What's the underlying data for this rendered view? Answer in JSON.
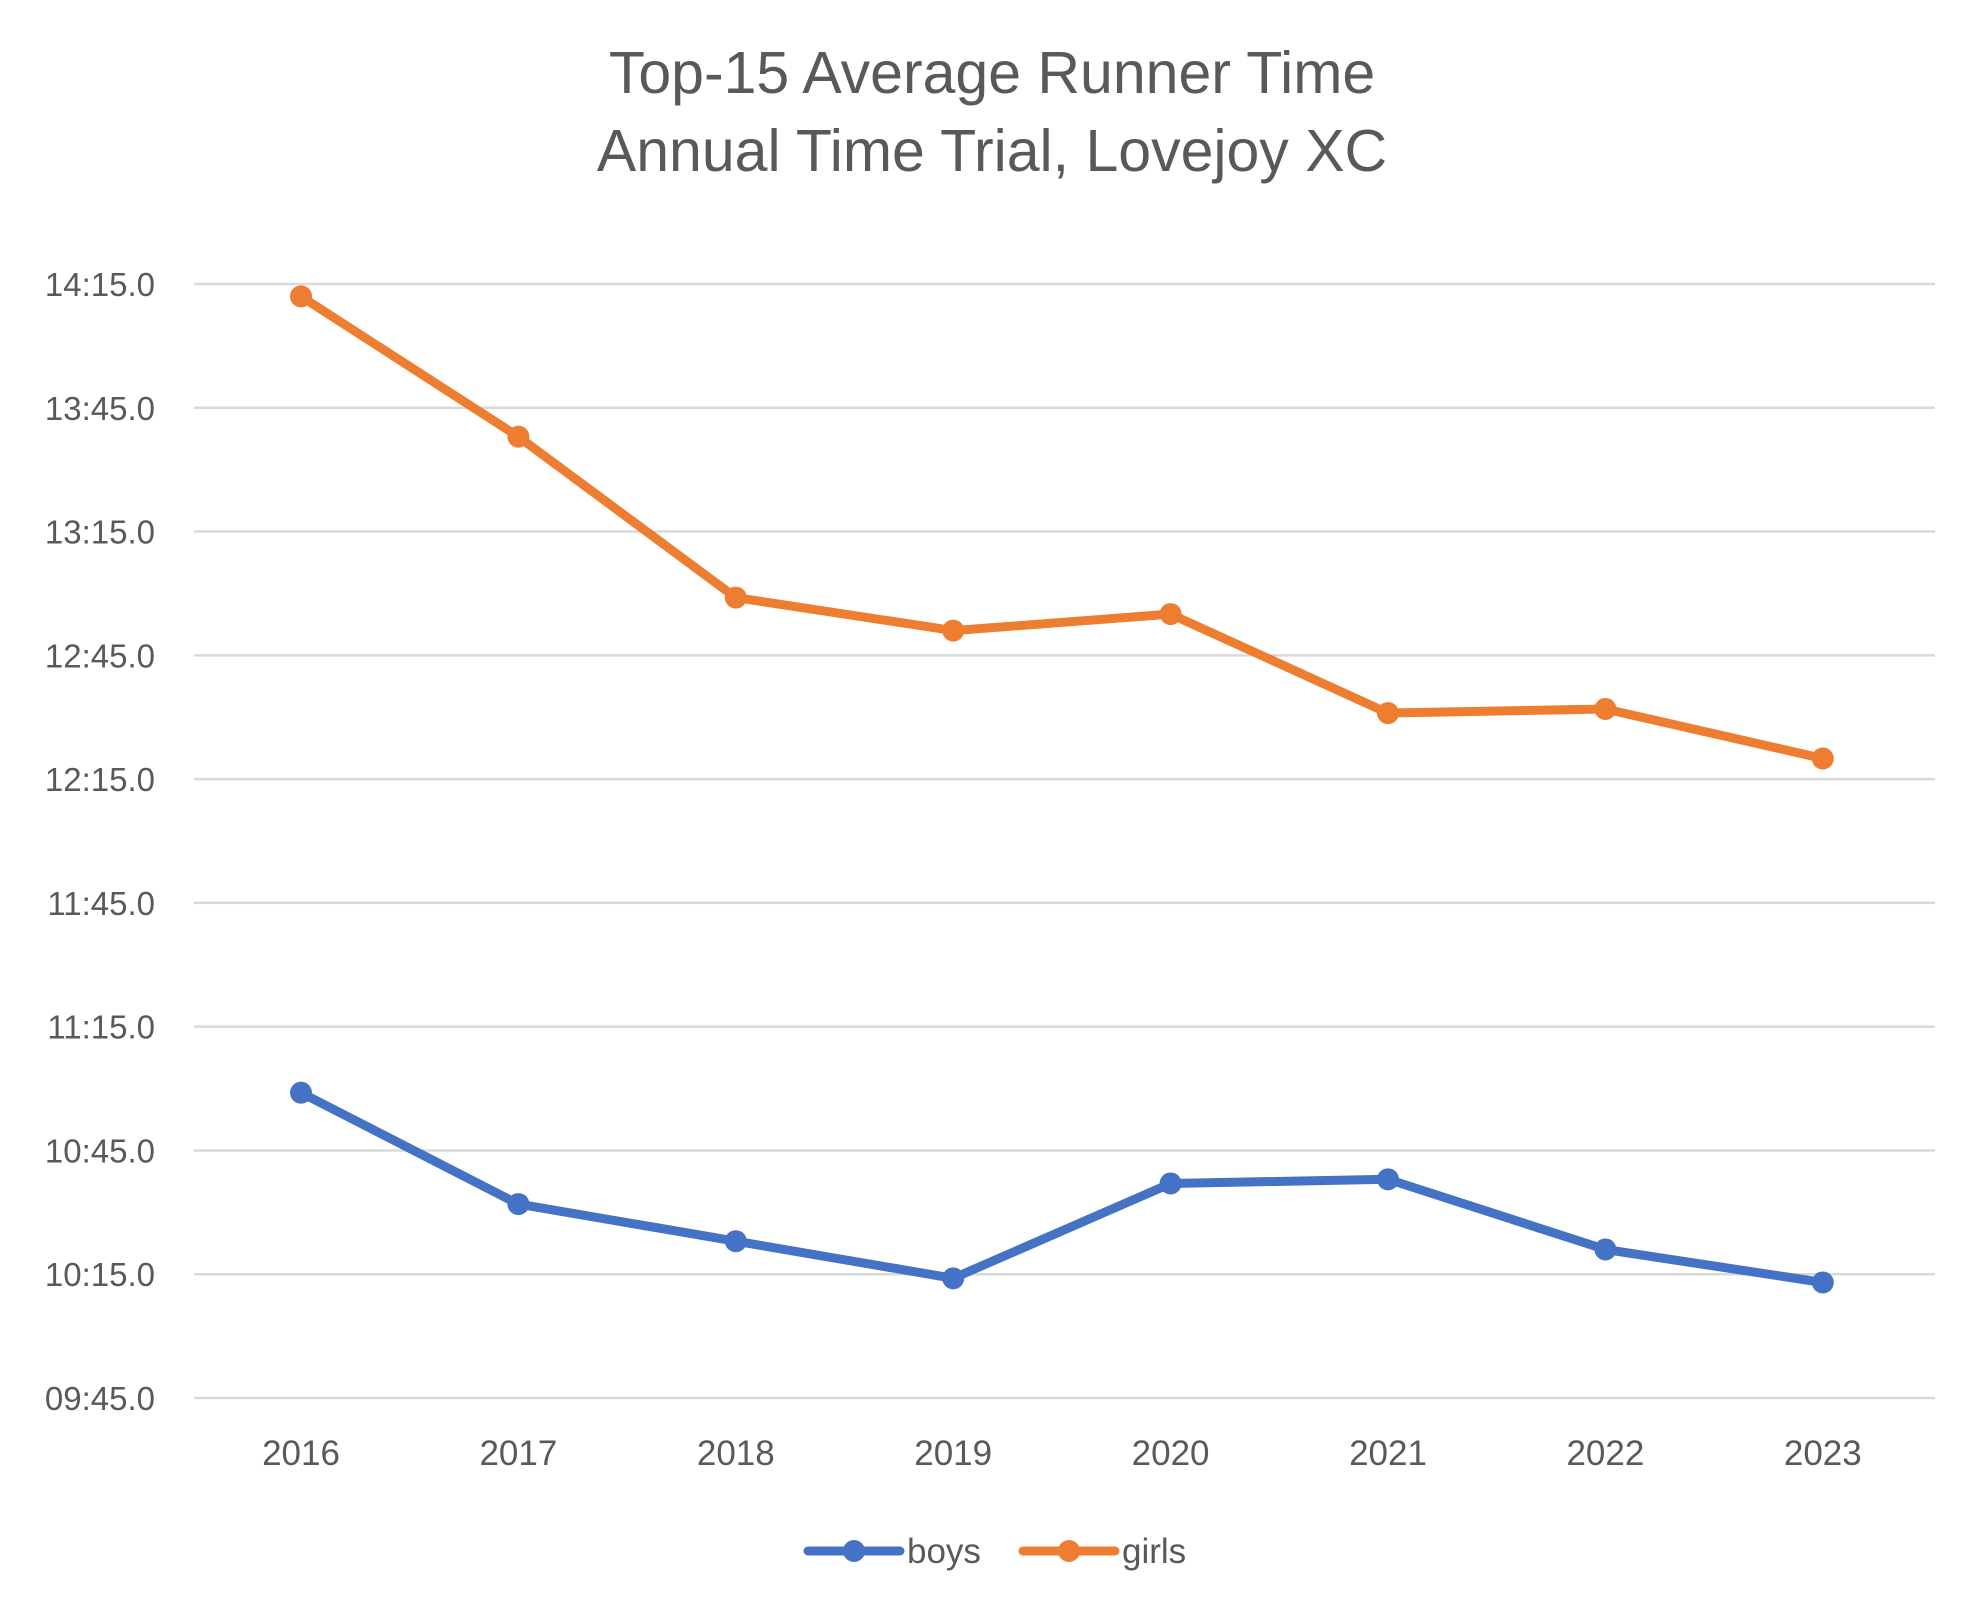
{
  "chart_data": {
    "type": "line",
    "title": [
      "Top-15 Average Runner Time",
      "Annual Time Trial, Lovejoy XC"
    ],
    "xlabel": "",
    "ylabel": "",
    "x": [
      "2016",
      "2017",
      "2018",
      "2019",
      "2020",
      "2021",
      "2022",
      "2023"
    ],
    "y_ticks": [
      "14:15.0",
      "13:45.0",
      "13:15.0",
      "12:45.0",
      "12:15.0",
      "11:45.0",
      "11:15.0",
      "10:45.0",
      "10:15.0",
      "09:45.0"
    ],
    "y_tick_seconds": [
      855,
      825,
      795,
      765,
      735,
      705,
      675,
      645,
      615,
      585
    ],
    "ylim_seconds": [
      585,
      855
    ],
    "y_unit": "seconds",
    "grid": true,
    "legend_position": "bottom",
    "series": [
      {
        "name": "boys",
        "color": "#4472C4",
        "values_seconds": [
          659,
          632,
          623,
          614,
          637,
          638,
          621,
          613
        ]
      },
      {
        "name": "girls",
        "color": "#ED7D31",
        "values_seconds": [
          852,
          818,
          779,
          771,
          775,
          751,
          752,
          740
        ]
      }
    ]
  }
}
